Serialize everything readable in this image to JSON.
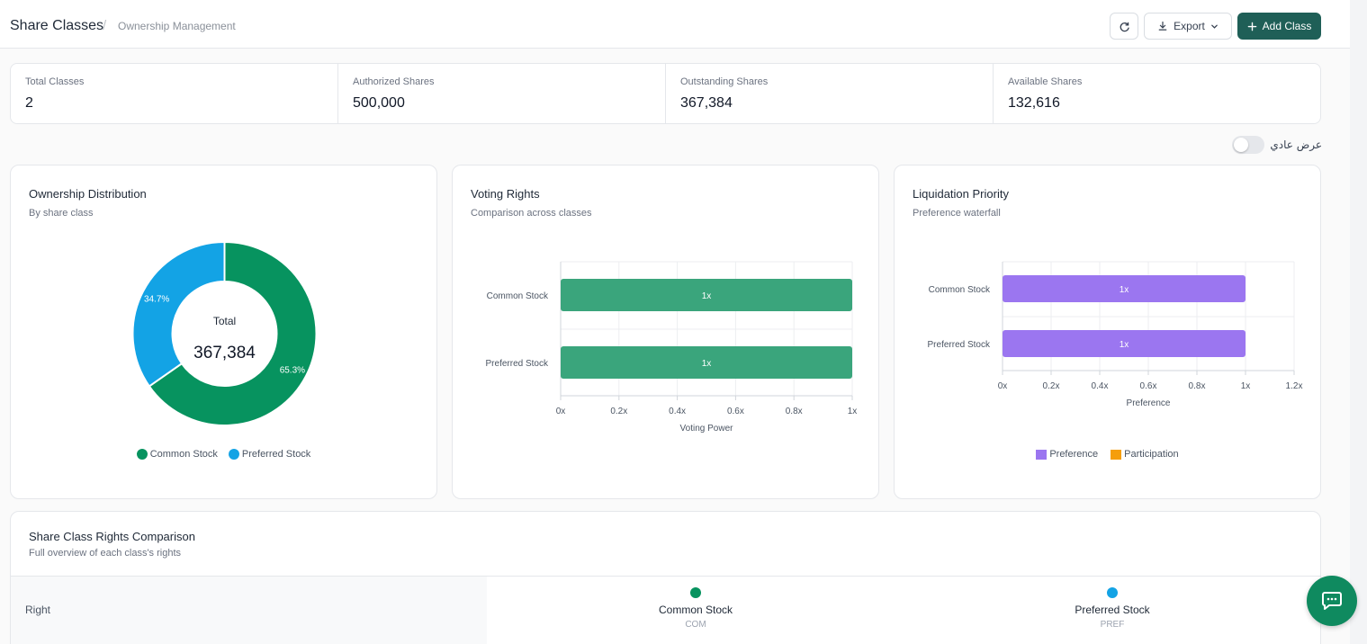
{
  "header": {
    "title": "Share Classes",
    "separator": "/",
    "breadcrumb": "Ownership Management",
    "refresh_icon": "refresh-icon",
    "export_label": "Export",
    "add_label": "Add Class",
    "accent": "#1f5f57"
  },
  "stats": [
    {
      "label": "Total Classes",
      "value": "2"
    },
    {
      "label": "Authorized Shares",
      "value": "500,000"
    },
    {
      "label": "Outstanding Shares",
      "value": "367,384"
    },
    {
      "label": "Available Shares",
      "value": "132,616"
    }
  ],
  "toggle": {
    "label": "عرض عادي",
    "on": false
  },
  "ownership": {
    "title": "Ownership Distribution",
    "subtitle": "By share class",
    "center_label": "Total",
    "center_value": "367,384",
    "legend": [
      "Common Stock",
      "Preferred Stock"
    ]
  },
  "voting": {
    "title": "Voting Rights",
    "subtitle": "Comparison across classes"
  },
  "liquidation": {
    "title": "Liquidation Priority",
    "subtitle": "Preference waterfall",
    "legend": [
      "Preference",
      "Participation"
    ]
  },
  "chart_data": [
    {
      "type": "pie",
      "categories": [
        "Common Stock",
        "Preferred Stock"
      ],
      "values": [
        65.3,
        34.7
      ],
      "labels": [
        "65.3%",
        "34.7%"
      ],
      "colors": [
        "#07935f",
        "#13a3e5"
      ],
      "legend": "bottom"
    },
    {
      "type": "bar",
      "orientation": "horizontal",
      "categories": [
        "Common Stock",
        "Preferred Stock"
      ],
      "values": [
        1,
        1
      ],
      "value_labels": [
        "1x",
        "1x"
      ],
      "x_ticks": [
        "0x",
        "0.2x",
        "0.4x",
        "0.6x",
        "0.8x",
        "1x"
      ],
      "xlabel": "Voting Power",
      "xlim": [
        0,
        1
      ],
      "color": "#3aa57c",
      "grid": true
    },
    {
      "type": "bar",
      "orientation": "horizontal",
      "categories": [
        "Common Stock",
        "Preferred Stock"
      ],
      "series": [
        {
          "name": "Preference",
          "values": [
            1,
            1
          ],
          "color": "#9b76f0"
        },
        {
          "name": "Participation",
          "values": [
            0,
            0
          ],
          "color": "#f59e0b"
        }
      ],
      "value_labels": [
        "1x",
        "1x"
      ],
      "x_ticks": [
        "0x",
        "0.2x",
        "0.4x",
        "0.6x",
        "0.8x",
        "1x",
        "1.2x"
      ],
      "xlabel": "Preference",
      "xlim": [
        0,
        1.2
      ],
      "legend": "bottom",
      "grid": true
    }
  ],
  "rights_table": {
    "title": "Share Class Rights Comparison",
    "subtitle": "Full overview of each class's rights",
    "first_col": "Right",
    "columns": [
      {
        "name": "Common Stock",
        "code": "COM",
        "color": "#07935f"
      },
      {
        "name": "Preferred Stock",
        "code": "PREF",
        "color": "#13a3e5"
      }
    ]
  },
  "chat_icon": "chat-bubble-icon"
}
